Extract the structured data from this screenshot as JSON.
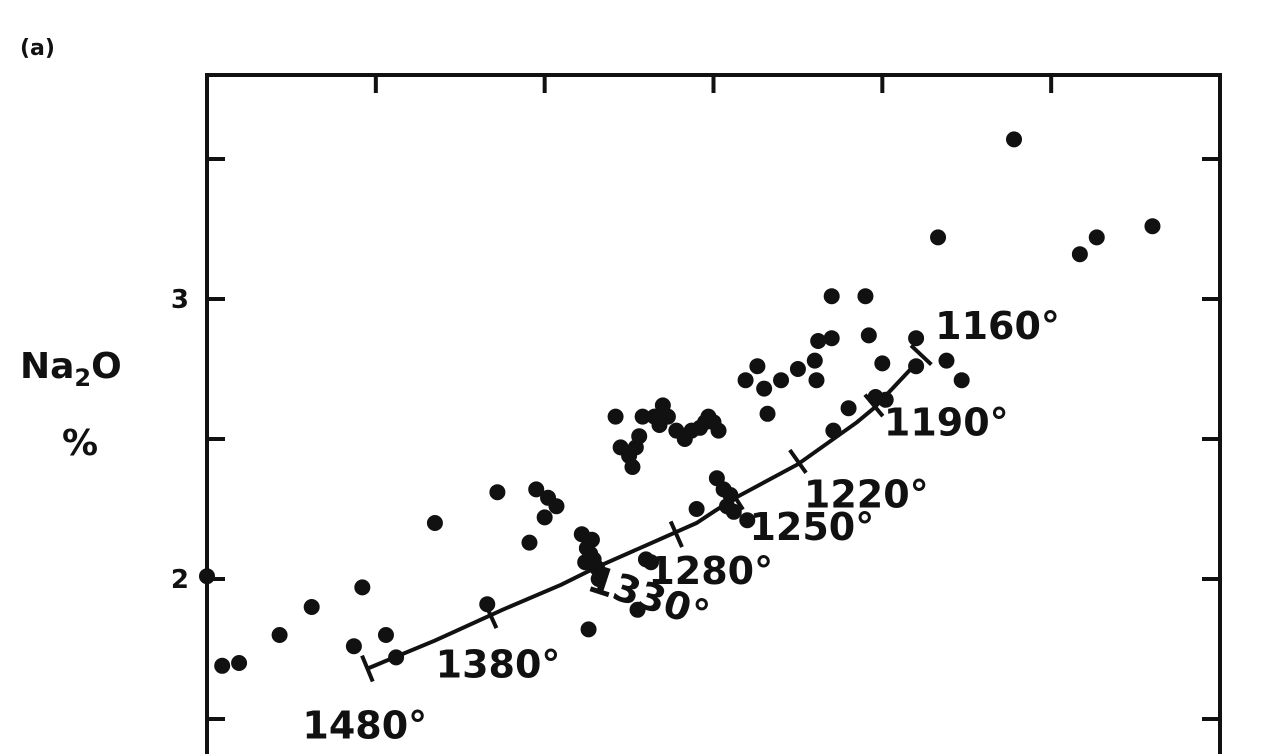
{
  "panel_label": "(a)",
  "chart_data": {
    "type": "scatter",
    "ylabel": "Na₂O %",
    "ylabel_parts": [
      "Na",
      "2",
      "O",
      "%"
    ],
    "xlim": [
      0,
      6
    ],
    "ylim": [
      1.3,
      3.8
    ],
    "yticks": [
      1.5,
      2,
      2.5,
      3,
      3.5
    ],
    "ytick_labels": [
      {
        "value": 2,
        "label": "2"
      },
      {
        "value": 3,
        "label": "3"
      }
    ],
    "xticks": [
      1,
      2,
      3,
      4,
      5
    ],
    "grid": false,
    "series": [
      {
        "kind": "points",
        "points": [
          [
            0.0,
            2.01
          ],
          [
            0.09,
            1.69
          ],
          [
            0.19,
            1.7
          ],
          [
            0.43,
            1.8
          ],
          [
            0.62,
            1.9
          ],
          [
            0.87,
            1.76
          ],
          [
            0.92,
            1.97
          ],
          [
            1.06,
            1.8
          ],
          [
            1.12,
            1.72
          ],
          [
            1.35,
            2.2
          ],
          [
            1.66,
            1.91
          ],
          [
            1.72,
            2.31
          ],
          [
            1.91,
            2.13
          ],
          [
            1.95,
            2.32
          ],
          [
            2.0,
            2.22
          ],
          [
            2.02,
            2.29
          ],
          [
            2.07,
            2.26
          ],
          [
            2.22,
            2.16
          ],
          [
            2.24,
            2.06
          ],
          [
            2.25,
            2.11
          ],
          [
            2.27,
            2.09
          ],
          [
            2.28,
            2.14
          ],
          [
            2.29,
            2.07
          ],
          [
            2.31,
            2.04
          ],
          [
            2.32,
            2.0
          ],
          [
            2.26,
            1.82
          ],
          [
            2.42,
            2.58
          ],
          [
            2.45,
            2.47
          ],
          [
            2.5,
            2.44
          ],
          [
            2.52,
            2.4
          ],
          [
            2.54,
            2.47
          ],
          [
            2.56,
            2.51
          ],
          [
            2.58,
            2.58
          ],
          [
            2.6,
            2.07
          ],
          [
            2.63,
            2.06
          ],
          [
            2.65,
            2.58
          ],
          [
            2.68,
            2.55
          ],
          [
            2.7,
            2.62
          ],
          [
            2.73,
            2.58
          ],
          [
            2.78,
            2.53
          ],
          [
            2.83,
            2.5
          ],
          [
            2.87,
            2.53
          ],
          [
            2.92,
            2.54
          ],
          [
            2.95,
            2.56
          ],
          [
            2.97,
            2.58
          ],
          [
            3.0,
            2.56
          ],
          [
            3.03,
            2.53
          ],
          [
            2.9,
            2.25
          ],
          [
            3.02,
            2.36
          ],
          [
            3.06,
            2.32
          ],
          [
            3.08,
            2.26
          ],
          [
            3.1,
            2.3
          ],
          [
            3.12,
            2.24
          ],
          [
            3.2,
            2.21
          ],
          [
            3.19,
            2.71
          ],
          [
            3.26,
            2.76
          ],
          [
            3.3,
            2.68
          ],
          [
            3.32,
            2.59
          ],
          [
            3.4,
            2.71
          ],
          [
            3.5,
            2.75
          ],
          [
            3.6,
            2.78
          ],
          [
            3.61,
            2.71
          ],
          [
            3.7,
            2.86
          ],
          [
            3.62,
            2.85
          ],
          [
            3.7,
            3.01
          ],
          [
            3.71,
            2.53
          ],
          [
            3.8,
            2.61
          ],
          [
            3.9,
            3.01
          ],
          [
            3.92,
            2.87
          ],
          [
            3.96,
            2.65
          ],
          [
            4.0,
            2.77
          ],
          [
            4.02,
            2.64
          ],
          [
            4.2,
            2.86
          ],
          [
            4.2,
            2.76
          ],
          [
            4.38,
            2.78
          ],
          [
            4.47,
            2.71
          ],
          [
            4.33,
            3.22
          ],
          [
            4.78,
            3.57
          ],
          [
            5.17,
            3.16
          ],
          [
            5.27,
            3.22
          ],
          [
            5.6,
            3.26
          ],
          [
            2.55,
            1.89
          ]
        ]
      },
      {
        "kind": "trend",
        "points": [
          [
            0.95,
            1.68
          ],
          [
            1.35,
            1.78
          ],
          [
            1.75,
            1.89
          ],
          [
            2.1,
            1.98
          ],
          [
            2.3,
            2.04
          ],
          [
            2.6,
            2.12
          ],
          [
            2.9,
            2.2
          ],
          [
            3.0,
            2.24
          ],
          [
            3.13,
            2.29
          ],
          [
            3.5,
            2.41
          ],
          [
            3.85,
            2.56
          ],
          [
            3.95,
            2.61
          ],
          [
            4.2,
            2.77
          ]
        ]
      }
    ],
    "annotations": [
      {
        "text": "1160°",
        "x": 4.23,
        "y": 2.8
      },
      {
        "text": "1190°",
        "x": 3.95,
        "y": 2.62
      },
      {
        "text": "1220°",
        "x": 3.5,
        "y": 2.42
      },
      {
        "text": "1250°",
        "x": 3.13,
        "y": 2.29
      },
      {
        "text": "1280°",
        "x": 2.78,
        "y": 2.16
      },
      {
        "text": "1330°",
        "x": 2.3,
        "y": 2.04
      },
      {
        "text": "1380°",
        "x": 1.68,
        "y": 1.87
      },
      {
        "text": "1480°",
        "x": 0.95,
        "y": 1.68
      }
    ]
  }
}
